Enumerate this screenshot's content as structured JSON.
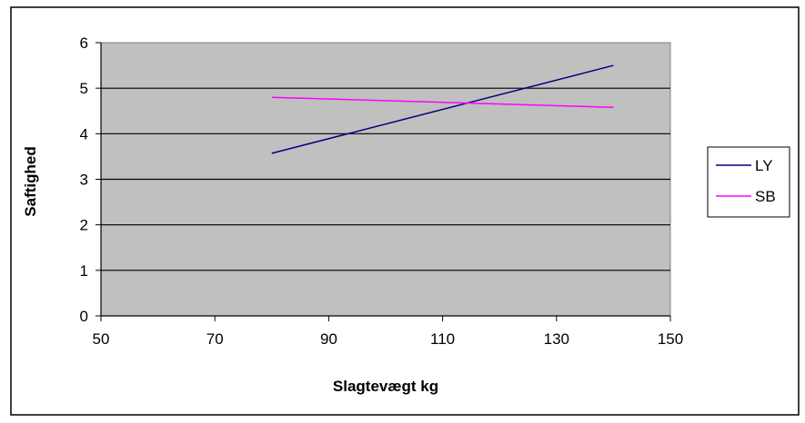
{
  "chart_data": {
    "type": "line",
    "title": "",
    "xlabel": "Slagtevægt kg",
    "ylabel": "Saftighed",
    "xlim": [
      50,
      150
    ],
    "ylim": [
      0,
      6
    ],
    "x_ticks": [
      50,
      70,
      90,
      110,
      130,
      150
    ],
    "y_ticks": [
      0,
      1,
      2,
      3,
      4,
      5,
      6
    ],
    "grid": "horizontal",
    "legend_position": "right",
    "plot_background": "#C0C0C0",
    "series": [
      {
        "name": "LY",
        "color": "#000080",
        "x": [
          80,
          140
        ],
        "y": [
          3.57,
          5.5
        ]
      },
      {
        "name": "SB",
        "color": "#FF00FF",
        "x": [
          80,
          140
        ],
        "y": [
          4.8,
          4.58
        ]
      }
    ]
  }
}
